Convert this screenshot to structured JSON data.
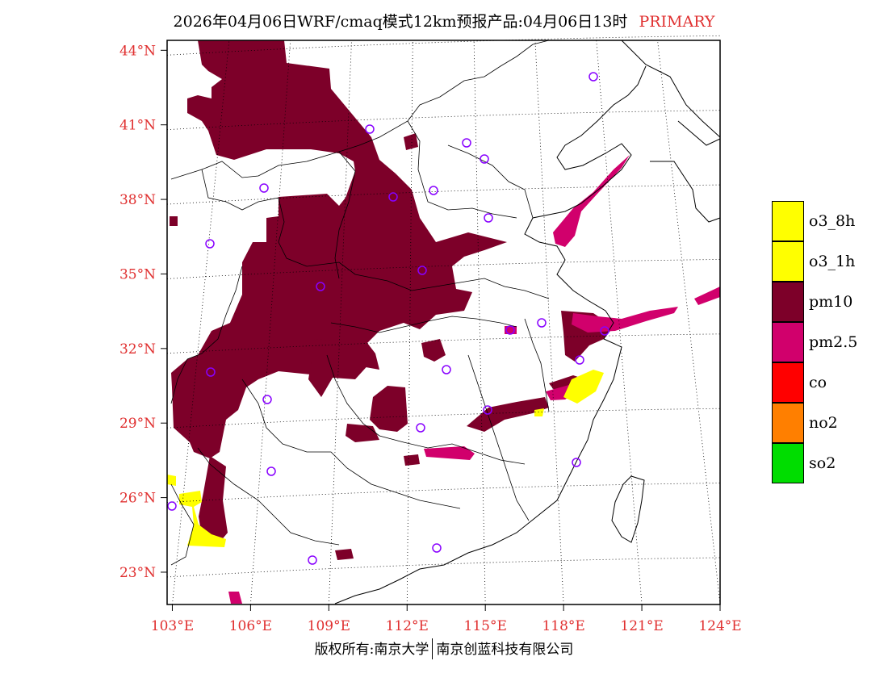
{
  "header": {
    "title": "2026年04月06日WRF/cmaq模式12km预报产品:04月06日13时",
    "tag": "PRIMARY"
  },
  "map": {
    "lat_labels": [
      "44°N",
      "41°N",
      "38°N",
      "35°N",
      "32°N",
      "29°N",
      "26°N",
      "23°N"
    ],
    "lon_labels": [
      "103°E",
      "106°E",
      "109°E",
      "112°E",
      "115°E",
      "118°E",
      "121°E",
      "124°E"
    ],
    "lat_values": [
      44,
      41,
      38,
      35,
      32,
      29,
      26,
      23
    ],
    "lon_values": [
      103,
      106,
      109,
      112,
      115,
      118,
      121,
      124
    ],
    "bounds": {
      "lon_min": 102.8,
      "lon_max": 124.0,
      "lat_min": 21.7,
      "lat_max": 44.4
    }
  },
  "legend": {
    "items": [
      {
        "label": "o3_8h",
        "color": "#ffff00"
      },
      {
        "label": "o3_1h",
        "color": "#ffff00"
      },
      {
        "label": "pm10",
        "color": "#7d0029"
      },
      {
        "label": "pm2.5",
        "color": "#d1006c"
      },
      {
        "label": "co",
        "color": "#ff0000"
      },
      {
        "label": "no2",
        "color": "#ff7f00"
      },
      {
        "label": "so2",
        "color": "#00dd00"
      }
    ]
  },
  "footer": {
    "left": "版权所有:南京大学",
    "right": "南京创蓝科技有限公司"
  },
  "colors": {
    "pm10": "#7d0029",
    "pm25": "#d1006c",
    "o3": "#ffff00",
    "station": "#8800ff",
    "axis_label": "#e03030"
  }
}
